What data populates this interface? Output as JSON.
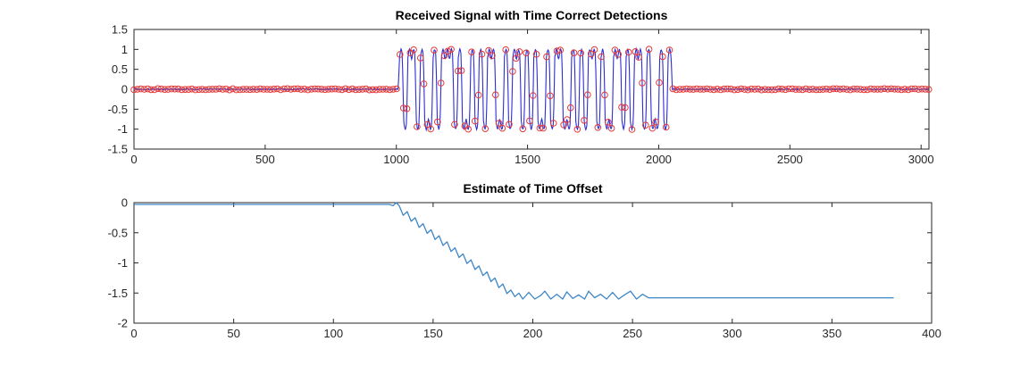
{
  "figure": {
    "background": "#ffffff",
    "axis_color": "#262626",
    "label_color": "#262626"
  },
  "chart_data": [
    {
      "type": "line",
      "title": "Received Signal with Time Correct Detections",
      "xlabel": "",
      "ylabel": "",
      "xlim": [
        0,
        3030
      ],
      "ylim": [
        -1.5,
        1.5
      ],
      "xticks": [
        0,
        500,
        1000,
        1500,
        2000,
        2500,
        3000
      ],
      "yticks": [
        1.5,
        1,
        0.5,
        0,
        -0.5,
        -1,
        -1.5
      ],
      "grid": false,
      "legend": null,
      "series": [
        {
          "name": "received-signal",
          "style": "solid-line",
          "color": "#2e2ed2",
          "width": 1.1
        },
        {
          "name": "correct-detections",
          "style": "circle-markers",
          "color": "#e53935",
          "radius": 3.3
        }
      ],
      "signal": {
        "description": "Near-zero noise floor with a bipolar (+/-1) pulse-shaped burst between samples 1010 and 2050; red circle detection markers sampled along the whole trace.",
        "noise_amplitude": 0.03,
        "burst_noise": 0.04,
        "burst_start": 1010,
        "burst_end": 2050,
        "samples_per_symbol": 16,
        "symbol_values": [
          1,
          -1,
          1,
          1,
          -1,
          1,
          -1,
          -1,
          1,
          -1,
          1,
          1,
          1,
          -1,
          1,
          -1,
          -1,
          1,
          -1,
          1,
          -1,
          1,
          1,
          -1,
          -1,
          1,
          -1,
          1,
          1,
          -1,
          1,
          -1,
          1,
          -1,
          -1,
          1,
          -1,
          1,
          1,
          -1,
          -1,
          1,
          -1,
          1,
          -1,
          1,
          1,
          -1,
          1,
          -1,
          -1,
          1,
          1,
          -1,
          1,
          -1,
          1,
          1,
          -1,
          1,
          -1,
          -1,
          1,
          -1,
          1
        ],
        "marker_interval": 13,
        "seed": 7
      }
    },
    {
      "type": "line",
      "title": "Estimate of Time Offset",
      "xlabel": "",
      "ylabel": "",
      "xlim": [
        0,
        400
      ],
      "ylim": [
        -2,
        0
      ],
      "xticks": [
        0,
        50,
        100,
        150,
        200,
        250,
        300,
        350,
        400
      ],
      "yticks": [
        0,
        -0.5,
        -1,
        -1.5,
        -2
      ],
      "grid": false,
      "legend": null,
      "series": [
        {
          "name": "time-offset-estimate",
          "style": "solid-line",
          "color": "#3d86c6",
          "width": 1.3
        }
      ],
      "points": [
        [
          0,
          -0.03
        ],
        [
          128,
          -0.03
        ],
        [
          130,
          -0.05
        ],
        [
          131.5,
          0.0
        ],
        [
          133,
          -0.05
        ],
        [
          135,
          -0.21
        ],
        [
          137,
          -0.15
        ],
        [
          139,
          -0.31
        ],
        [
          141,
          -0.25
        ],
        [
          143,
          -0.41
        ],
        [
          145,
          -0.35
        ],
        [
          147,
          -0.51
        ],
        [
          149,
          -0.45
        ],
        [
          151,
          -0.61
        ],
        [
          153,
          -0.55
        ],
        [
          155,
          -0.71
        ],
        [
          157,
          -0.65
        ],
        [
          159,
          -0.81
        ],
        [
          161,
          -0.75
        ],
        [
          163,
          -0.91
        ],
        [
          165,
          -0.85
        ],
        [
          167,
          -1.01
        ],
        [
          169,
          -0.95
        ],
        [
          171,
          -1.11
        ],
        [
          173,
          -1.05
        ],
        [
          175,
          -1.21
        ],
        [
          177,
          -1.15
        ],
        [
          179,
          -1.31
        ],
        [
          181,
          -1.25
        ],
        [
          183,
          -1.41
        ],
        [
          185,
          -1.35
        ],
        [
          187,
          -1.51
        ],
        [
          189,
          -1.45
        ],
        [
          191,
          -1.56
        ],
        [
          193,
          -1.5
        ],
        [
          195,
          -1.6
        ],
        [
          198,
          -1.49
        ],
        [
          201,
          -1.6
        ],
        [
          204,
          -1.54
        ],
        [
          206,
          -1.47
        ],
        [
          209,
          -1.6
        ],
        [
          212,
          -1.52
        ],
        [
          215,
          -1.6
        ],
        [
          217,
          -1.48
        ],
        [
          220,
          -1.59
        ],
        [
          223,
          -1.53
        ],
        [
          226,
          -1.6
        ],
        [
          228,
          -1.47
        ],
        [
          231,
          -1.58
        ],
        [
          234,
          -1.52
        ],
        [
          237,
          -1.6
        ],
        [
          240,
          -1.49
        ],
        [
          243,
          -1.6
        ],
        [
          246,
          -1.53
        ],
        [
          249,
          -1.47
        ],
        [
          252,
          -1.6
        ],
        [
          255,
          -1.52
        ],
        [
          258,
          -1.58
        ],
        [
          381,
          -1.58
        ]
      ]
    }
  ]
}
